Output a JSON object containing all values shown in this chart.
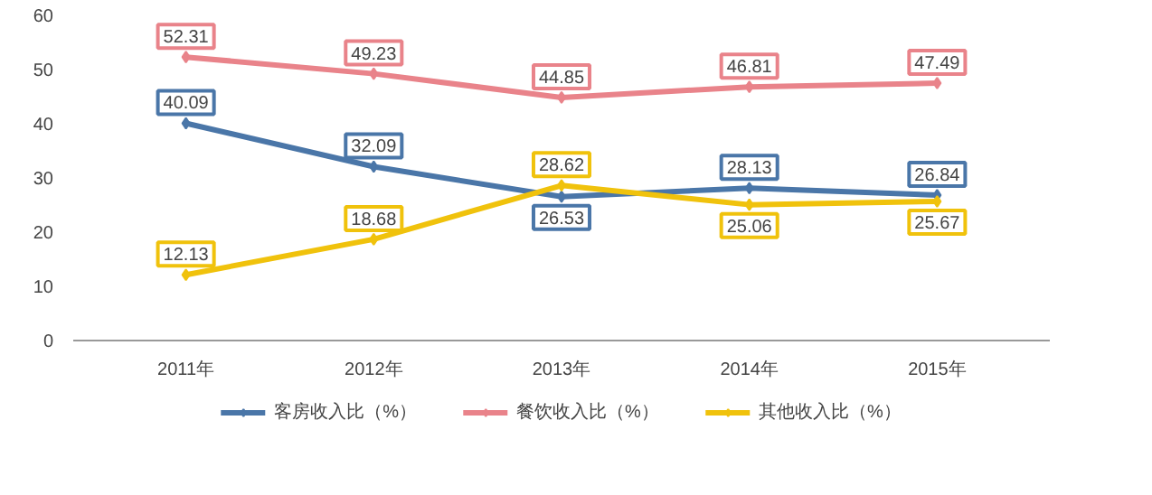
{
  "chart_data": {
    "type": "line",
    "categories": [
      "2011年",
      "2012年",
      "2013年",
      "2014年",
      "2015年"
    ],
    "series": [
      {
        "name": "客房收入比（%）",
        "color": "#4a76a8",
        "values": [
          40.09,
          32.09,
          26.53,
          28.13,
          26.84
        ]
      },
      {
        "name": "餐饮收入比（%）",
        "color": "#e9838a",
        "values": [
          52.31,
          49.23,
          44.85,
          46.81,
          47.49
        ]
      },
      {
        "name": "其他收入比（%）",
        "color": "#f0c20c",
        "values": [
          12.13,
          18.68,
          28.62,
          25.06,
          25.67
        ]
      }
    ],
    "ylim": [
      0,
      60
    ],
    "yticks": [
      0,
      10,
      20,
      30,
      40,
      50,
      60
    ],
    "grid": false,
    "legend": "bottom",
    "data_labels": true,
    "marker": "diamond",
    "line_style": "solid"
  }
}
